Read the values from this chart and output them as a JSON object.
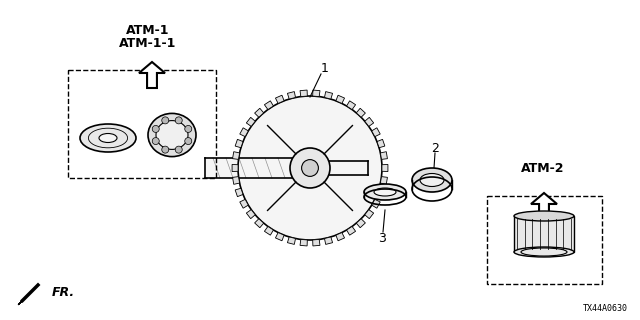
{
  "bg_color": "#ffffff",
  "line_color": "#000000",
  "diagram_code": "TX44A0630",
  "labels": {
    "atm1": "ATM-1",
    "atm1_1": "ATM-1-1",
    "atm2": "ATM-2",
    "fr": "FR.",
    "part1": "1",
    "part2": "2",
    "part3": "3"
  },
  "figsize": [
    6.4,
    3.2
  ],
  "dpi": 100
}
